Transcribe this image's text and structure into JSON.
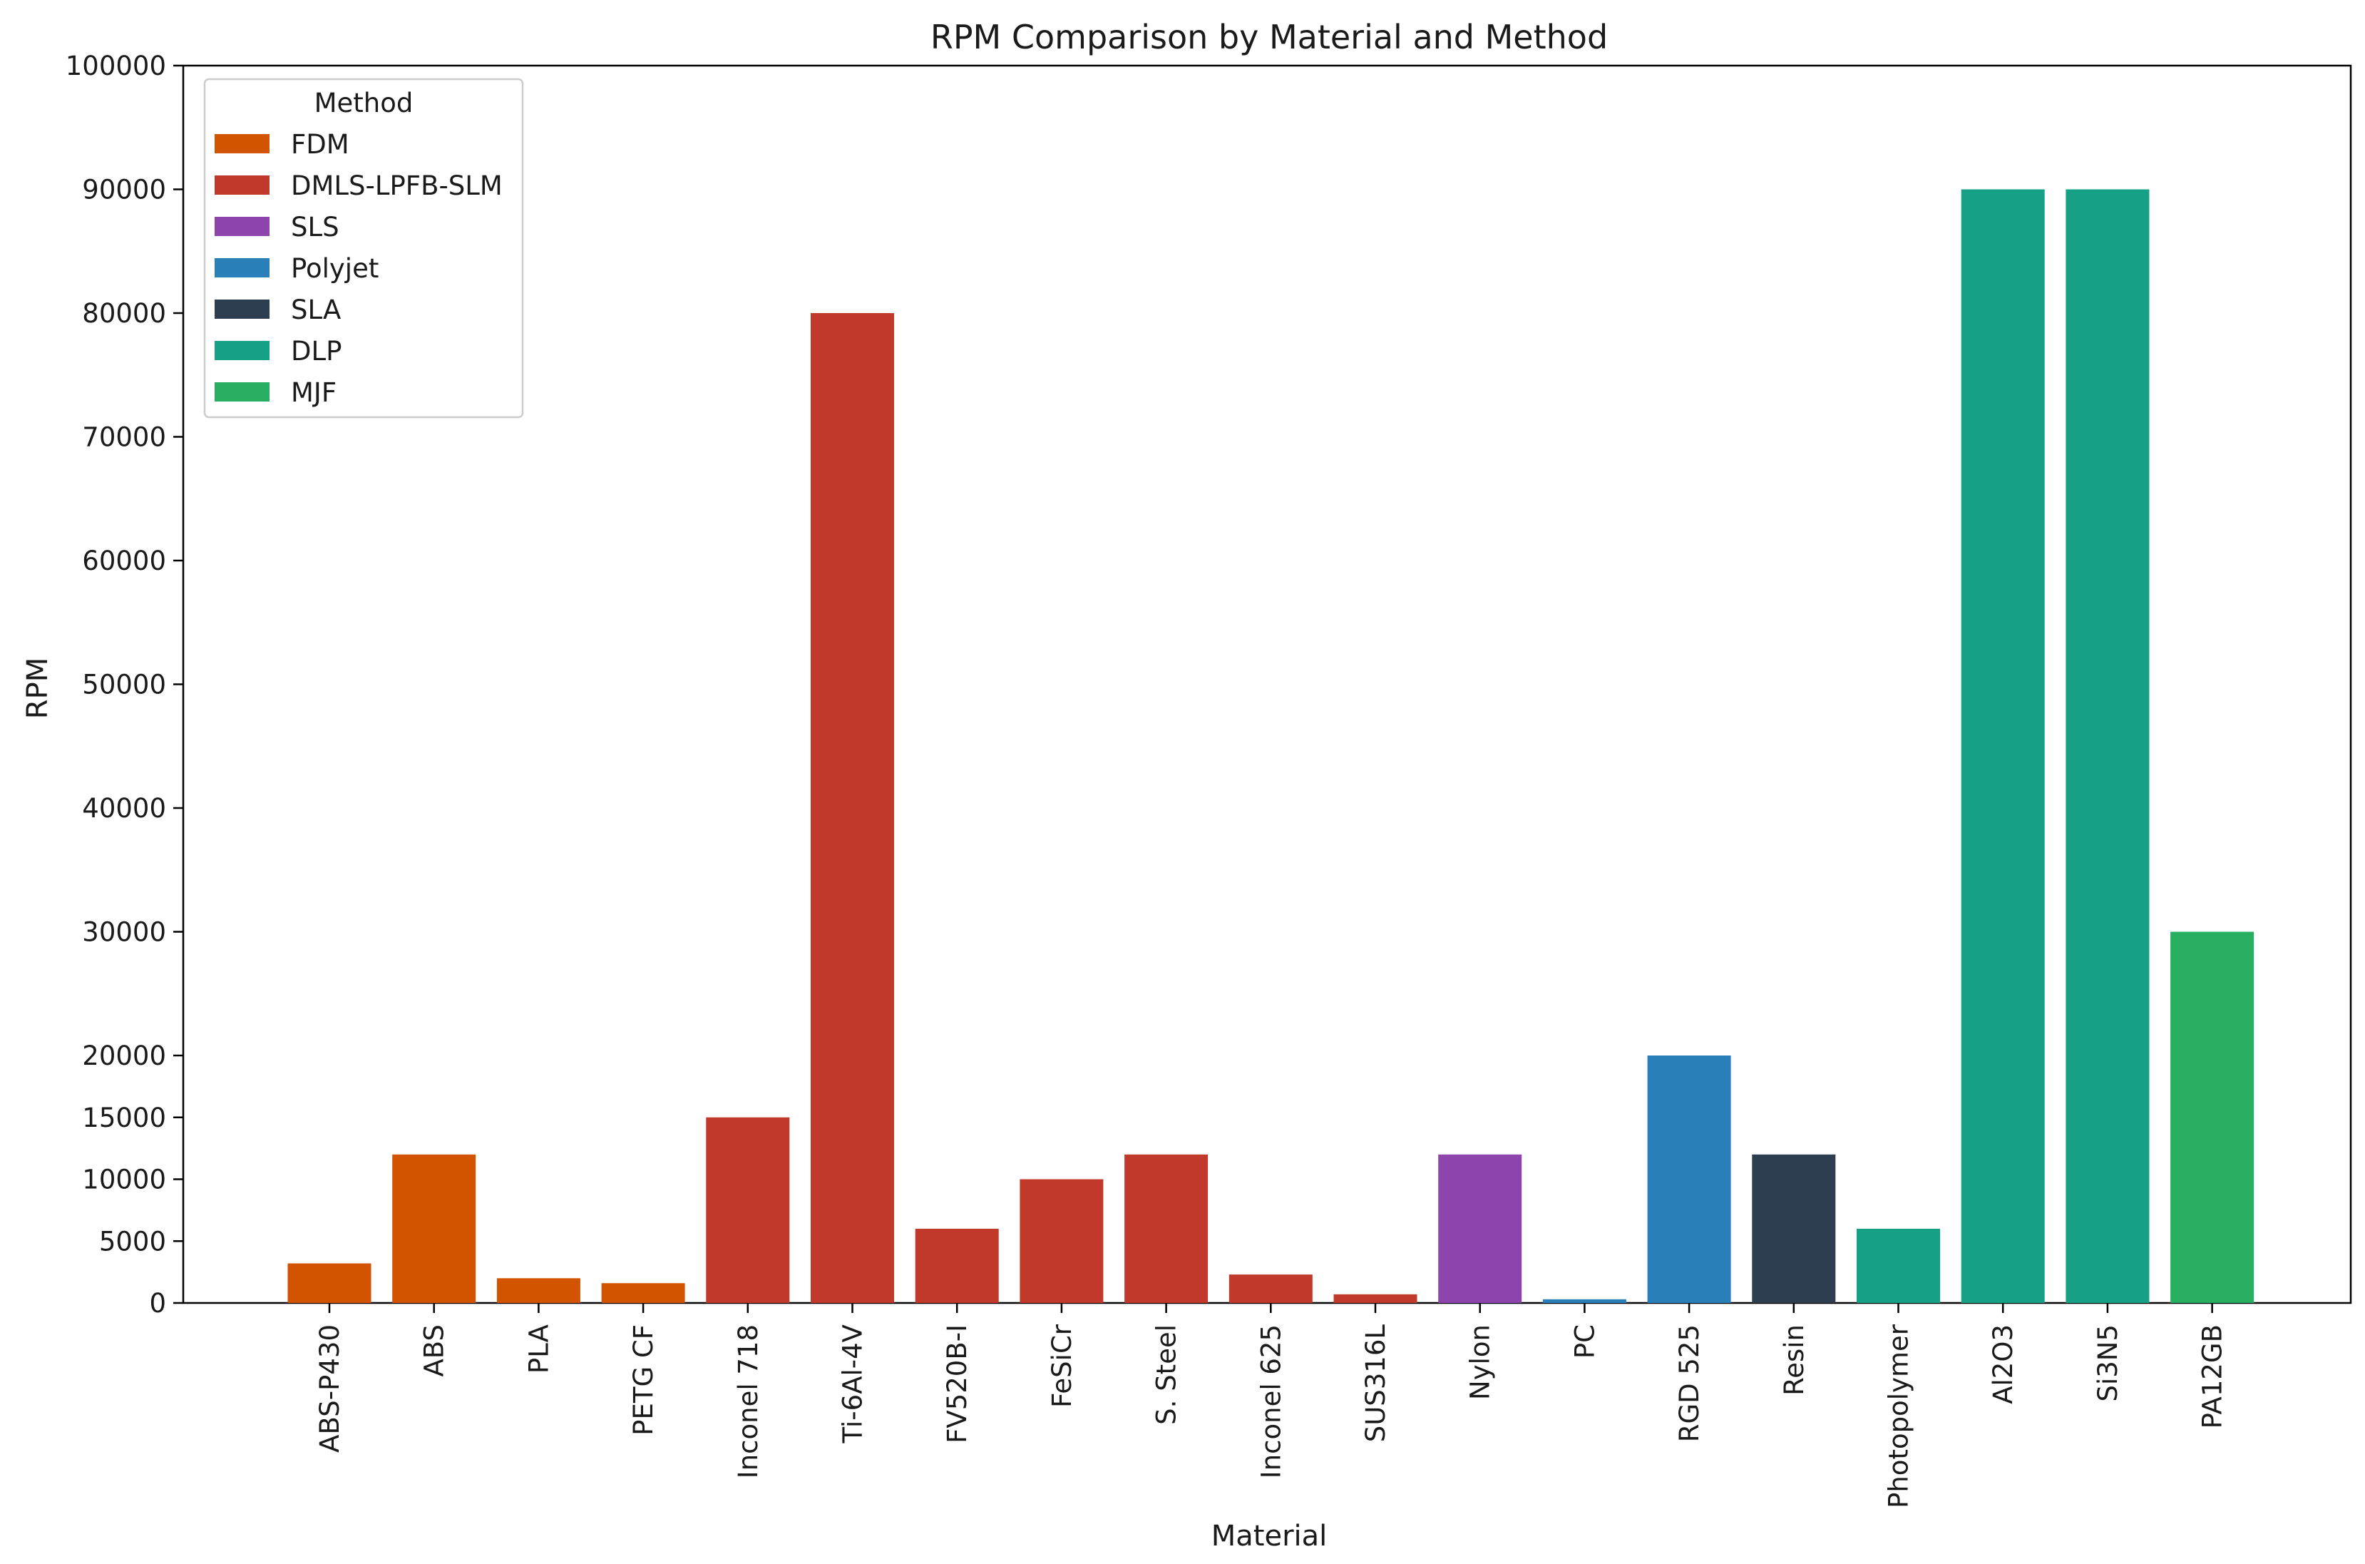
{
  "chart_data": {
    "type": "bar",
    "title": "RPM Comparison by Material and Method",
    "xlabel": "Material",
    "ylabel": "RPM",
    "ylim": [
      0,
      100000
    ],
    "yticks": [
      "0",
      "5000",
      "10000",
      "15000",
      "20000",
      "30000",
      "40000",
      "50000",
      "60000",
      "70000",
      "80000",
      "90000",
      "100000"
    ],
    "ytick_values": [
      0,
      5000,
      10000,
      15000,
      20000,
      30000,
      40000,
      50000,
      60000,
      70000,
      80000,
      90000,
      100000
    ],
    "grid": false,
    "legend": {
      "title": "Method",
      "placement": "top-left",
      "entries": [
        {
          "name": "FDM",
          "color": "#D35400"
        },
        {
          "name": "DMLS-LPFB-SLM",
          "color": "#C0392B"
        },
        {
          "name": "SLS",
          "color": "#8E44AD"
        },
        {
          "name": "Polyjet",
          "color": "#2980B9"
        },
        {
          "name": "SLA",
          "color": "#2C3E50"
        },
        {
          "name": "DLP",
          "color": "#16A085"
        },
        {
          "name": "MJF",
          "color": "#27AE60"
        }
      ]
    },
    "categories": [
      "ABS-P430",
      "ABS",
      "PLA",
      "PETG CF",
      "Inconel 718",
      "Ti-6Al-4V",
      "FV520B-I",
      "FeSiCr",
      "S. Steel",
      "Inconel 625",
      "SUS316L",
      "Nylon",
      "PC",
      "RGD 525",
      "Resin",
      "Photopolymer",
      "Al2O3",
      "Si3N5",
      "PA12GB"
    ],
    "values": [
      3200,
      12000,
      2000,
      1600,
      15000,
      80000,
      6000,
      10000,
      12000,
      2300,
      700,
      12000,
      300,
      20000,
      12000,
      6000,
      90000,
      90000,
      30000
    ],
    "methods": [
      "FDM",
      "FDM",
      "FDM",
      "FDM",
      "DMLS-LPFB-SLM",
      "DMLS-LPFB-SLM",
      "DMLS-LPFB-SLM",
      "DMLS-LPFB-SLM",
      "DMLS-LPFB-SLM",
      "DMLS-LPFB-SLM",
      "DMLS-LPFB-SLM",
      "SLS",
      "Polyjet",
      "Polyjet",
      "SLA",
      "DLP",
      "DLP",
      "DLP",
      "MJF"
    ]
  }
}
